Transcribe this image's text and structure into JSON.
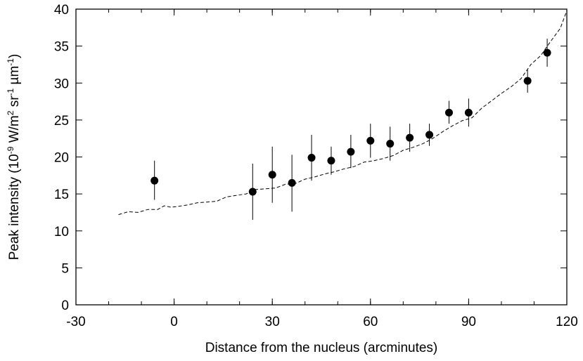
{
  "chart_data": {
    "type": "scatter",
    "title": "",
    "xlabel": "Distance from the nucleus (arcminutes)",
    "ylabel": {
      "parts": [
        {
          "t": "Peak intensity (10",
          "sup": false
        },
        {
          "t": "-9",
          "sup": true
        },
        {
          "t": " W/m",
          "sup": false
        },
        {
          "t": "2",
          "sup": true
        },
        {
          "t": " sr",
          "sup": false
        },
        {
          "t": "-1",
          "sup": true
        },
        {
          "t": " µm",
          "sup": false
        },
        {
          "t": "-1",
          "sup": true
        },
        {
          "t": ")",
          "sup": false
        }
      ]
    },
    "xlim": [
      -30,
      120
    ],
    "ylim": [
      0,
      40
    ],
    "xticks": [
      -30,
      0,
      30,
      60,
      90,
      120
    ],
    "yticks": [
      0,
      5,
      10,
      15,
      20,
      25,
      30,
      35,
      40
    ],
    "x_minor_step": 10,
    "grid": false,
    "legend": "none",
    "series": [
      {
        "kind": "points_with_errorbars",
        "color": "#000000",
        "points": [
          {
            "x": -6,
            "y": 16.8,
            "lo": 14.2,
            "hi": 19.5
          },
          {
            "x": 24,
            "y": 15.3,
            "lo": 11.5,
            "hi": 19.1
          },
          {
            "x": 30,
            "y": 17.6,
            "lo": 13.8,
            "hi": 21.4
          },
          {
            "x": 36,
            "y": 16.5,
            "lo": 12.6,
            "hi": 20.3
          },
          {
            "x": 42,
            "y": 19.9,
            "lo": 16.8,
            "hi": 23.0
          },
          {
            "x": 48,
            "y": 19.5,
            "lo": 17.6,
            "hi": 21.4
          },
          {
            "x": 54,
            "y": 20.7,
            "lo": 18.5,
            "hi": 23.0
          },
          {
            "x": 60,
            "y": 22.2,
            "lo": 19.9,
            "hi": 24.5
          },
          {
            "x": 66,
            "y": 21.8,
            "lo": 19.5,
            "hi": 24.1
          },
          {
            "x": 72,
            "y": 22.6,
            "lo": 20.7,
            "hi": 24.5
          },
          {
            "x": 78,
            "y": 23.0,
            "lo": 21.5,
            "hi": 24.5
          },
          {
            "x": 84,
            "y": 26.0,
            "lo": 24.5,
            "hi": 27.6
          },
          {
            "x": 90,
            "y": 26.0,
            "lo": 24.1,
            "hi": 27.9
          },
          {
            "x": 108,
            "y": 30.3,
            "lo": 28.7,
            "hi": 31.8
          },
          {
            "x": 114,
            "y": 34.1,
            "lo": 32.2,
            "hi": 36.0
          }
        ]
      },
      {
        "kind": "dashed_line",
        "color": "#000000",
        "x": [
          -17,
          -14,
          -11,
          -8,
          -5,
          -3,
          -1,
          1,
          4,
          7,
          10,
          13,
          16,
          19,
          22,
          25,
          28,
          31,
          34,
          37,
          40,
          43,
          46,
          49,
          52,
          55,
          58,
          61,
          64,
          67,
          70,
          73,
          76,
          79,
          82,
          85,
          88,
          91,
          94,
          97,
          100,
          103,
          106,
          109,
          112,
          115,
          118,
          120
        ],
        "y": [
          12.2,
          12.6,
          12.5,
          12.9,
          12.9,
          13.4,
          13.2,
          13.3,
          13.5,
          13.8,
          13.9,
          14.0,
          14.6,
          14.8,
          15.0,
          15.6,
          15.7,
          15.8,
          16.3,
          16.4,
          17.0,
          17.3,
          17.7,
          18.0,
          18.4,
          18.7,
          19.3,
          19.5,
          19.8,
          20.2,
          20.9,
          21.3,
          21.8,
          22.5,
          23.4,
          24.2,
          24.9,
          25.3,
          26.6,
          27.6,
          28.6,
          29.5,
          30.6,
          32.5,
          33.7,
          35.6,
          37.4,
          39.8
        ]
      }
    ]
  }
}
